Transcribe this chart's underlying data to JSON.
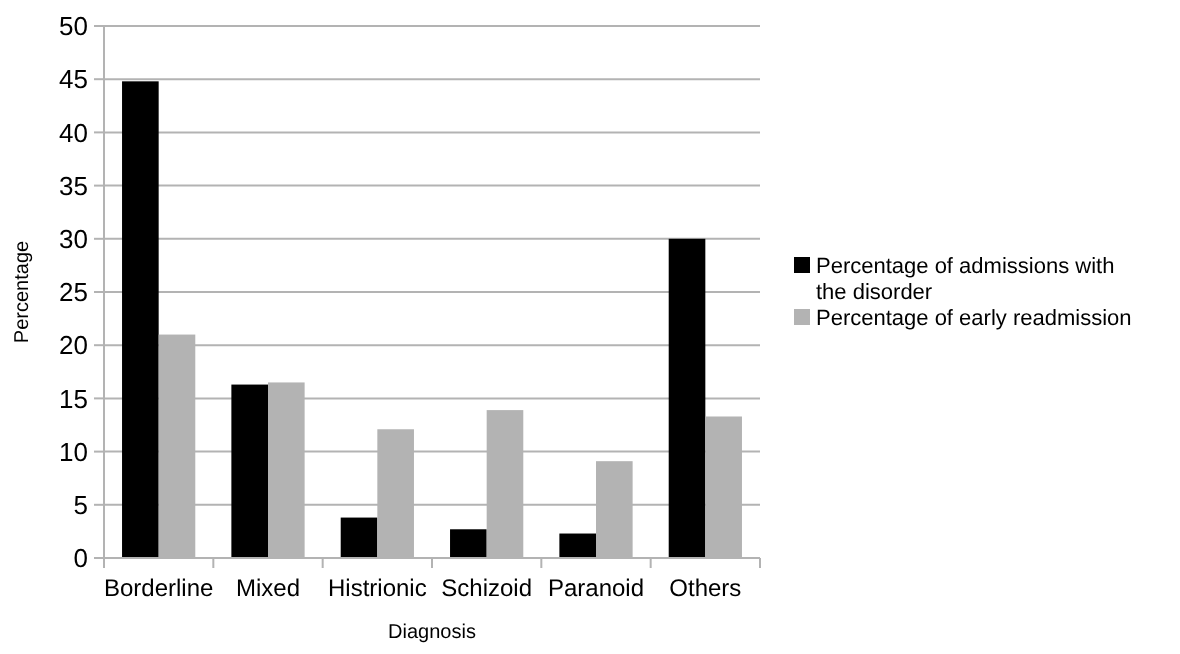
{
  "chart_data": {
    "type": "bar",
    "xlabel": "Diagnosis",
    "ylabel": "Percentage",
    "categories": [
      "Borderline",
      "Mixed",
      "Histrionic",
      "Schizoid",
      "Paranoid",
      "Others"
    ],
    "series": [
      {
        "name": "Percentage of admissions with the disorder",
        "color": "#000000",
        "values": [
          44.8,
          16.3,
          3.8,
          2.7,
          2.3,
          30
        ]
      },
      {
        "name": "Percentage of early readmission",
        "color": "#b3b3b3",
        "values": [
          21,
          16.5,
          12.1,
          13.9,
          9.1,
          13.3
        ]
      }
    ],
    "ylim": [
      0,
      50
    ],
    "yticks": [
      0,
      5,
      10,
      15,
      20,
      25,
      30,
      35,
      40,
      45,
      50
    ],
    "grid": "y",
    "legend": "right"
  }
}
